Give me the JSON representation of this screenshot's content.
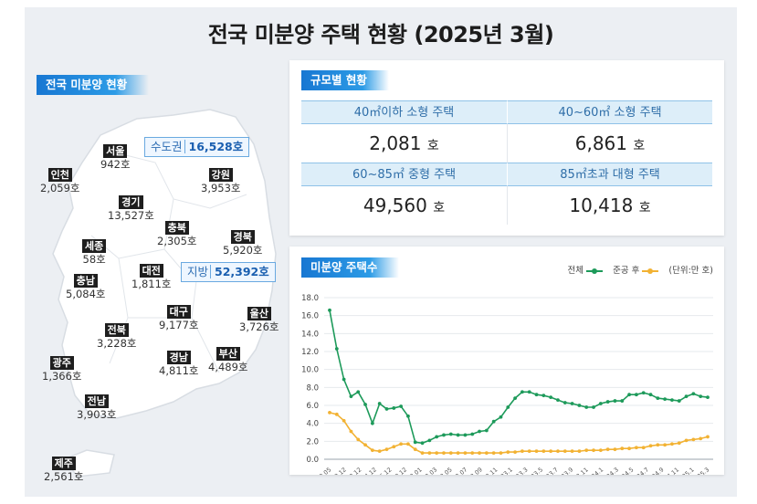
{
  "page": {
    "title": "전국 미분양 주택 현황  (2025년 3월)"
  },
  "map_section": {
    "badge": "전국 미분양 현황",
    "capital_callout": {
      "label": "수도권",
      "value": "16,528호"
    },
    "local_callout": {
      "label": "지방",
      "value": "52,392호"
    },
    "regions": [
      {
        "name": "서울",
        "count": "942호"
      },
      {
        "name": "인천",
        "count": "2,059호"
      },
      {
        "name": "경기",
        "count": "13,527호"
      },
      {
        "name": "강원",
        "count": "3,953호"
      },
      {
        "name": "충북",
        "count": "2,305호"
      },
      {
        "name": "세종",
        "count": "58호"
      },
      {
        "name": "경북",
        "count": "5,920호"
      },
      {
        "name": "충남",
        "count": "5,084호"
      },
      {
        "name": "대전",
        "count": "1,811호"
      },
      {
        "name": "대구",
        "count": "9,177호"
      },
      {
        "name": "울산",
        "count": "3,726호"
      },
      {
        "name": "전북",
        "count": "3,228호"
      },
      {
        "name": "경남",
        "count": "4,811호"
      },
      {
        "name": "부산",
        "count": "4,489호"
      },
      {
        "name": "광주",
        "count": "1,366호"
      },
      {
        "name": "전남",
        "count": "3,903호"
      },
      {
        "name": "제주",
        "count": "2,561호"
      }
    ]
  },
  "size_section": {
    "badge": "규모별 현황",
    "unit": "호",
    "cells": [
      {
        "label": "40㎡이하 소형 주택",
        "value": "2,081"
      },
      {
        "label": "40~60㎡ 소형 주택",
        "value": "6,861"
      },
      {
        "label": "60~85㎡ 중형 주택",
        "value": "49,560"
      },
      {
        "label": "85㎡초과 대형 주택",
        "value": "10,418"
      }
    ]
  },
  "chart_section": {
    "badge": "미분양 주택수",
    "legend": {
      "total": "전체",
      "completed": "준공 후",
      "unit": "(단위:만 호)"
    }
  },
  "colors": {
    "total": "#1d9a5a",
    "completed": "#f2b233",
    "accent": "#1877d2"
  },
  "chart_data": {
    "type": "line",
    "ylim": [
      0,
      18
    ],
    "yticks": [
      "0.0",
      "2.0",
      "4.0",
      "6.0",
      "8.0",
      "10.0",
      "12.0",
      "14.0",
      "16.0",
      "18.0"
    ],
    "x_tick_labels": [
      "09.05",
      "10.12",
      "12.12",
      "14.12",
      "16.12",
      "20.12",
      "22.01",
      "22.03",
      "22.05",
      "22.07",
      "22.09",
      "22.11",
      "23.1",
      "23.3",
      "23.5",
      "23.7",
      "23.9",
      "23.11",
      "24.1",
      "24.3",
      "24.5",
      "24.7",
      "24.9",
      "24.11",
      "25.1",
      "25.3"
    ],
    "series": [
      {
        "name": "전체",
        "values": [
          16.6,
          12.3,
          8.9,
          7.0,
          7.5,
          6.1,
          4.0,
          6.2,
          5.6,
          5.7,
          5.9,
          4.8,
          1.9,
          1.8,
          2.1,
          2.5,
          2.7,
          2.8,
          2.7,
          2.7,
          2.8,
          3.1,
          3.2,
          4.2,
          4.7,
          5.8,
          6.8,
          7.5,
          7.5,
          7.2,
          7.1,
          6.9,
          6.6,
          6.3,
          6.2,
          6.0,
          5.8,
          5.8,
          6.2,
          6.4,
          6.5,
          6.5,
          7.2,
          7.2,
          7.4,
          7.2,
          6.8,
          6.7,
          6.6,
          6.5,
          7.0,
          7.3,
          7.0,
          6.9
        ]
      },
      {
        "name": "준공 후",
        "values": [
          5.2,
          5.0,
          4.3,
          3.1,
          2.2,
          1.6,
          1.0,
          0.9,
          1.1,
          1.4,
          1.7,
          1.7,
          1.1,
          0.7,
          0.7,
          0.7,
          0.7,
          0.7,
          0.7,
          0.7,
          0.7,
          0.7,
          0.7,
          0.7,
          0.7,
          0.8,
          0.8,
          0.9,
          0.9,
          0.9,
          0.9,
          0.9,
          0.9,
          0.9,
          0.9,
          0.9,
          1.0,
          1.0,
          1.0,
          1.1,
          1.1,
          1.2,
          1.2,
          1.3,
          1.3,
          1.5,
          1.6,
          1.6,
          1.7,
          1.8,
          2.1,
          2.2,
          2.3,
          2.5
        ]
      }
    ]
  }
}
